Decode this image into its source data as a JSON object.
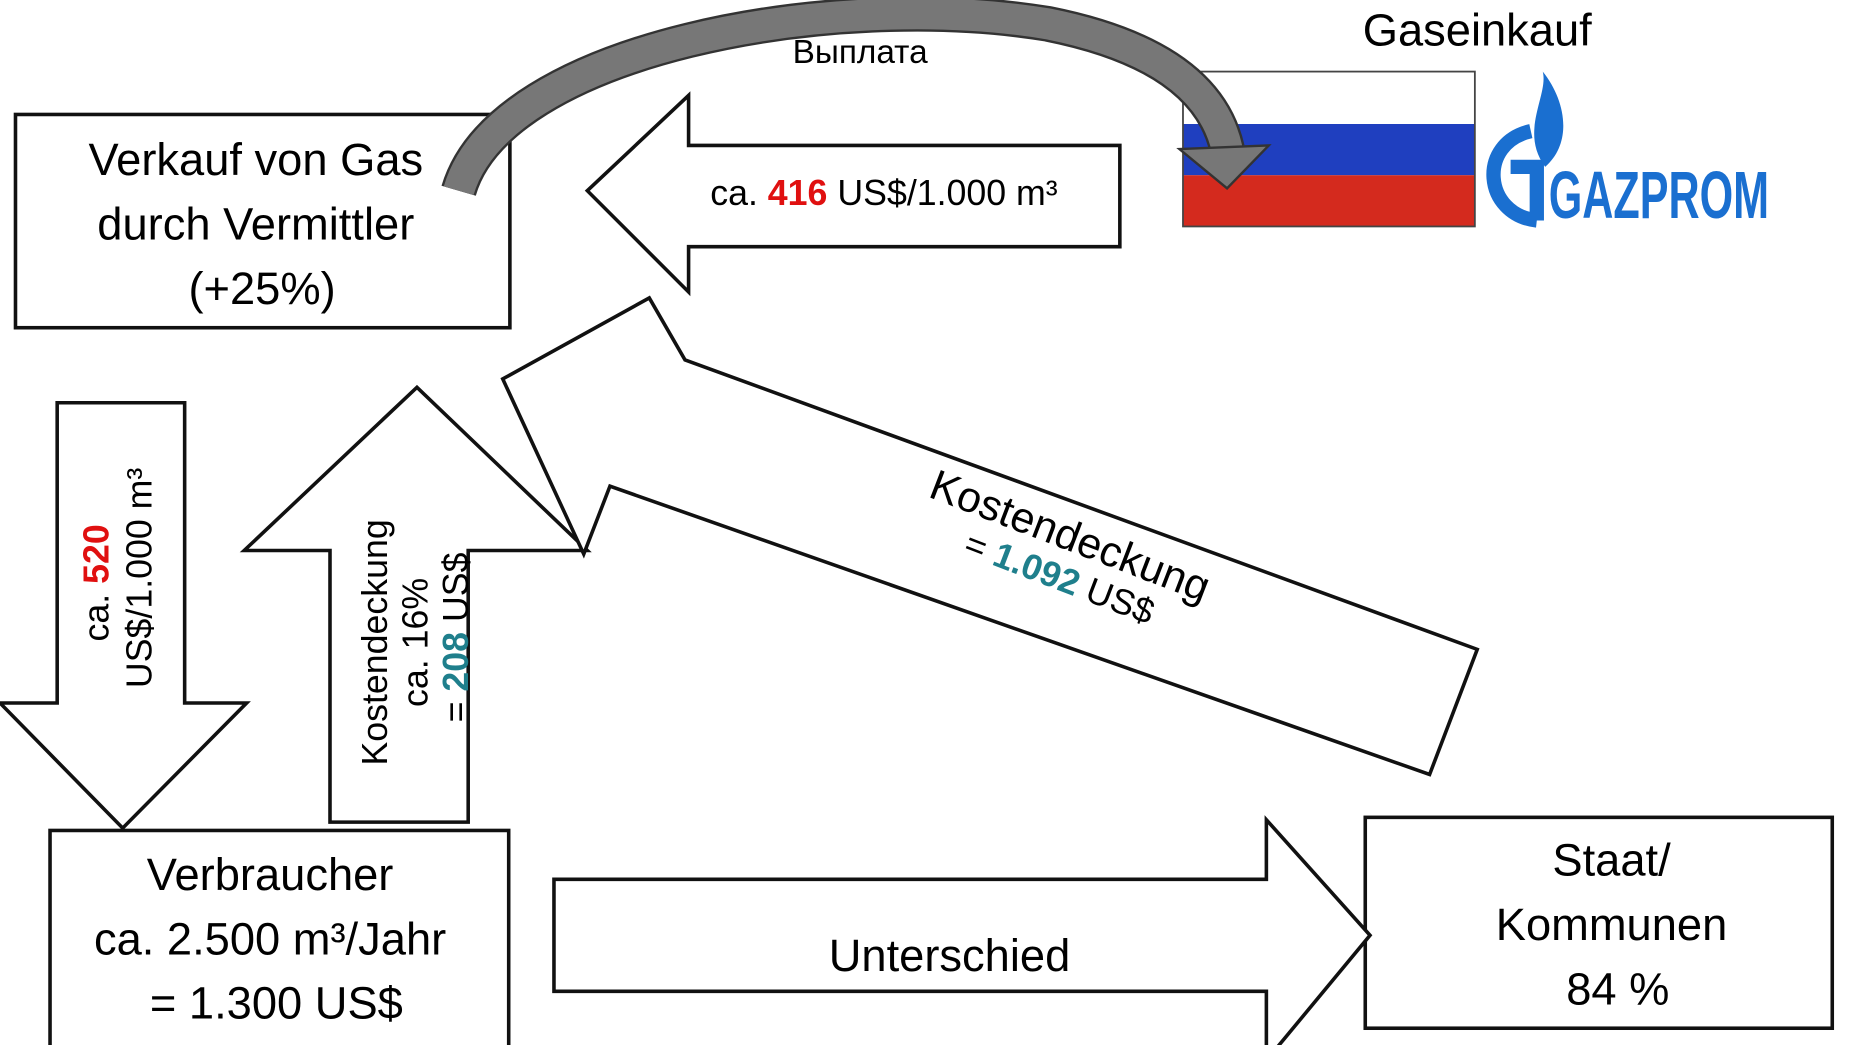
{
  "title": "Gaseinkauf",
  "payment": "Выплата",
  "logo": "GAZPROM",
  "seller": {
    "lines": [
      "Verkauf von Gas",
      "durch Vermittler",
      "(+25%)"
    ]
  },
  "consumer": {
    "lines": [
      "Verbraucher",
      "ca. 2.500 m³/Jahr",
      "= 1.300 US$"
    ]
  },
  "state": {
    "lines": [
      "Staat/",
      "Kommunen",
      "84 %"
    ]
  },
  "purchase_arrow": {
    "prefix": "ca. ",
    "highlight": "416",
    "suffix": " US$/1.000 m³"
  },
  "price_arrow": {
    "prefix": "ca. ",
    "highlight": "520",
    "line2": "US$/1.000 m³"
  },
  "coverage_arrow": {
    "line1": "Kostendeckung",
    "line2": "ca. 16%",
    "prefix": "= ",
    "highlight": "208",
    "suffix": " US$"
  },
  "diagonal_arrow": {
    "line1": "Kostendeckung",
    "prefix": "= ",
    "highlight": "1.092",
    "suffix": " US$"
  },
  "difference_arrow": {
    "label": "Unterschied"
  }
}
